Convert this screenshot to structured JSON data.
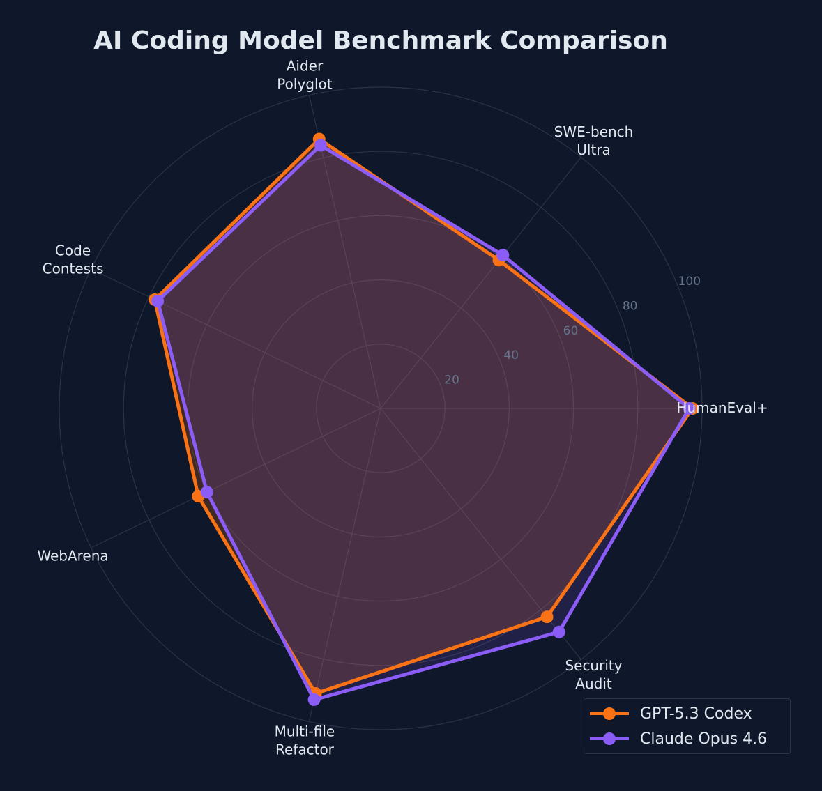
{
  "chart_data": {
    "type": "radar",
    "title": "AI Coding Model Benchmark Comparison",
    "categories": [
      "HumanEval+",
      "SWE-bench\nUltra",
      "Aider\nPolyglot",
      "Code\nContests",
      "WebArena",
      "Multi-file\nRefactor",
      "Security\nAudit"
    ],
    "rlim": [
      0,
      100
    ],
    "rticks": [
      20,
      40,
      60,
      80,
      100
    ],
    "grid": true,
    "legend": "bottom-right",
    "series": [
      {
        "name": "GPT-5.3 Codex",
        "color": "#f97316",
        "values": [
          97,
          59,
          86,
          78,
          63,
          91,
          83
        ]
      },
      {
        "name": "Claude Opus 4.6",
        "color": "#8b5cf6",
        "values": [
          96,
          61,
          84,
          77,
          60,
          93,
          89
        ]
      }
    ]
  },
  "colors": {
    "background": "#0f172a",
    "grid": "#2a3347",
    "text": "#e2e8f0",
    "tick_text": "#64748b"
  }
}
